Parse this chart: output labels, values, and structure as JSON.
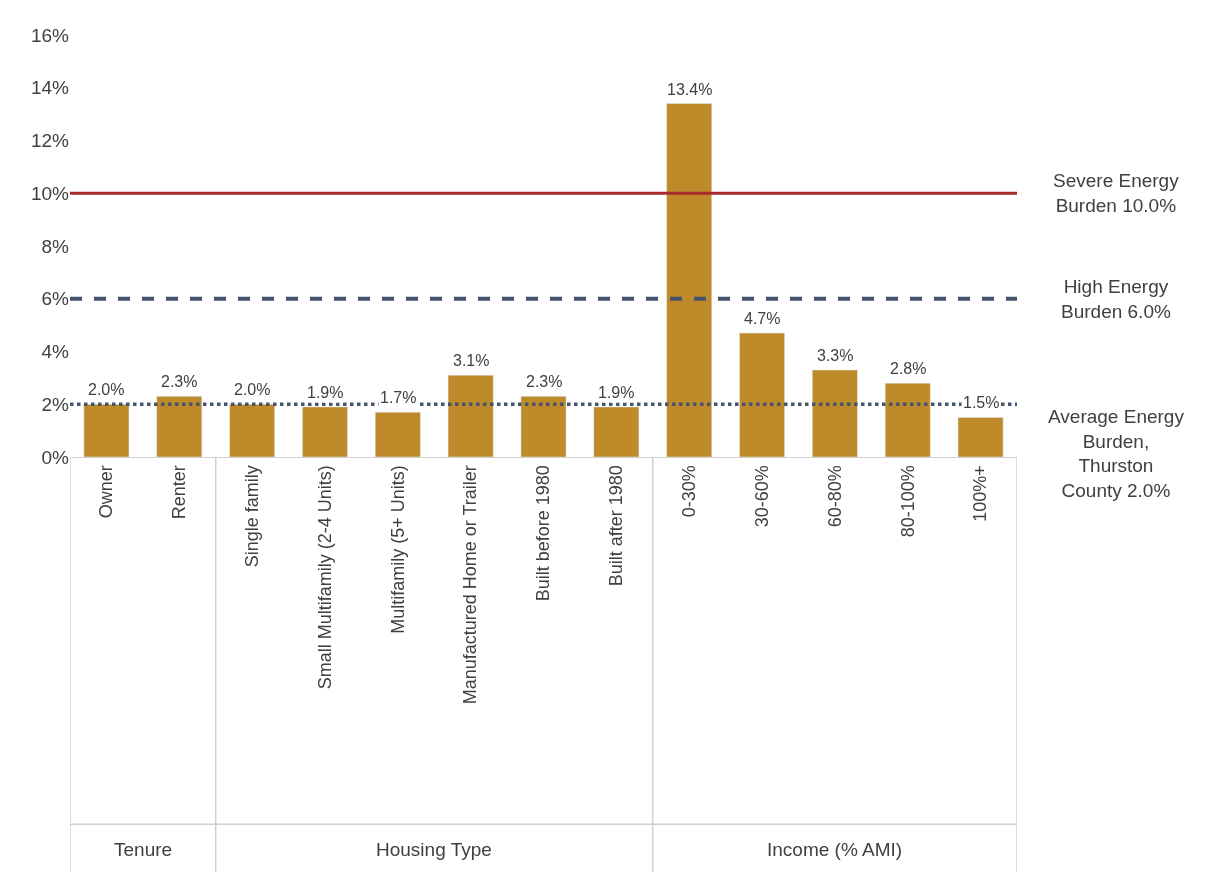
{
  "chart_data": {
    "type": "bar",
    "categories": [
      "Owner",
      "Renter",
      "Single family",
      "Small Multifamily (2-4 Units)",
      "Multifamily (5+ Units)",
      "Manufactured Home or Trailer",
      "Built before 1980",
      "Built after 1980",
      "0-30%",
      "30-60%",
      "60-80%",
      "80-100%",
      "100%+"
    ],
    "values": [
      2.0,
      2.3,
      2.0,
      1.9,
      1.7,
      3.1,
      2.3,
      1.9,
      13.4,
      4.7,
      3.3,
      2.8,
      1.5
    ],
    "value_labels": [
      "2.0%",
      "2.3%",
      "2.0%",
      "1.9%",
      "1.7%",
      "3.1%",
      "2.3%",
      "1.9%",
      "13.4%",
      "4.7%",
      "3.3%",
      "2.8%",
      "1.5%"
    ],
    "color": "#bf8b2a",
    "ylim": [
      0,
      16
    ],
    "yticks": [
      {
        "value": 0,
        "label": "0%"
      },
      {
        "value": 2,
        "label": "2%"
      },
      {
        "value": 4,
        "label": "4%"
      },
      {
        "value": 6,
        "label": "6%"
      },
      {
        "value": 8,
        "label": "8%"
      },
      {
        "value": 10,
        "label": "10%"
      },
      {
        "value": 12,
        "label": "12%"
      },
      {
        "value": 14,
        "label": "14%"
      },
      {
        "value": 16,
        "label": "16%"
      }
    ],
    "ref_lines": [
      {
        "axis": "y",
        "value": 10,
        "label": "Severe Energy Burden 10.0%",
        "color": "#a82a2a",
        "line_style": "solid"
      },
      {
        "axis": "y",
        "value": 6,
        "label": "High Energy Burden 6.0%",
        "color": "#44546a",
        "line_style": "dashed"
      },
      {
        "axis": "y",
        "value": 2,
        "label": "Average Energy Burden, Thurston County 2.0%",
        "color": "#44546a",
        "line_style": "dotted"
      }
    ],
    "annotations": [
      "Tenure",
      "Housing Type",
      "Income (% AMI)"
    ],
    "legend": false
  }
}
